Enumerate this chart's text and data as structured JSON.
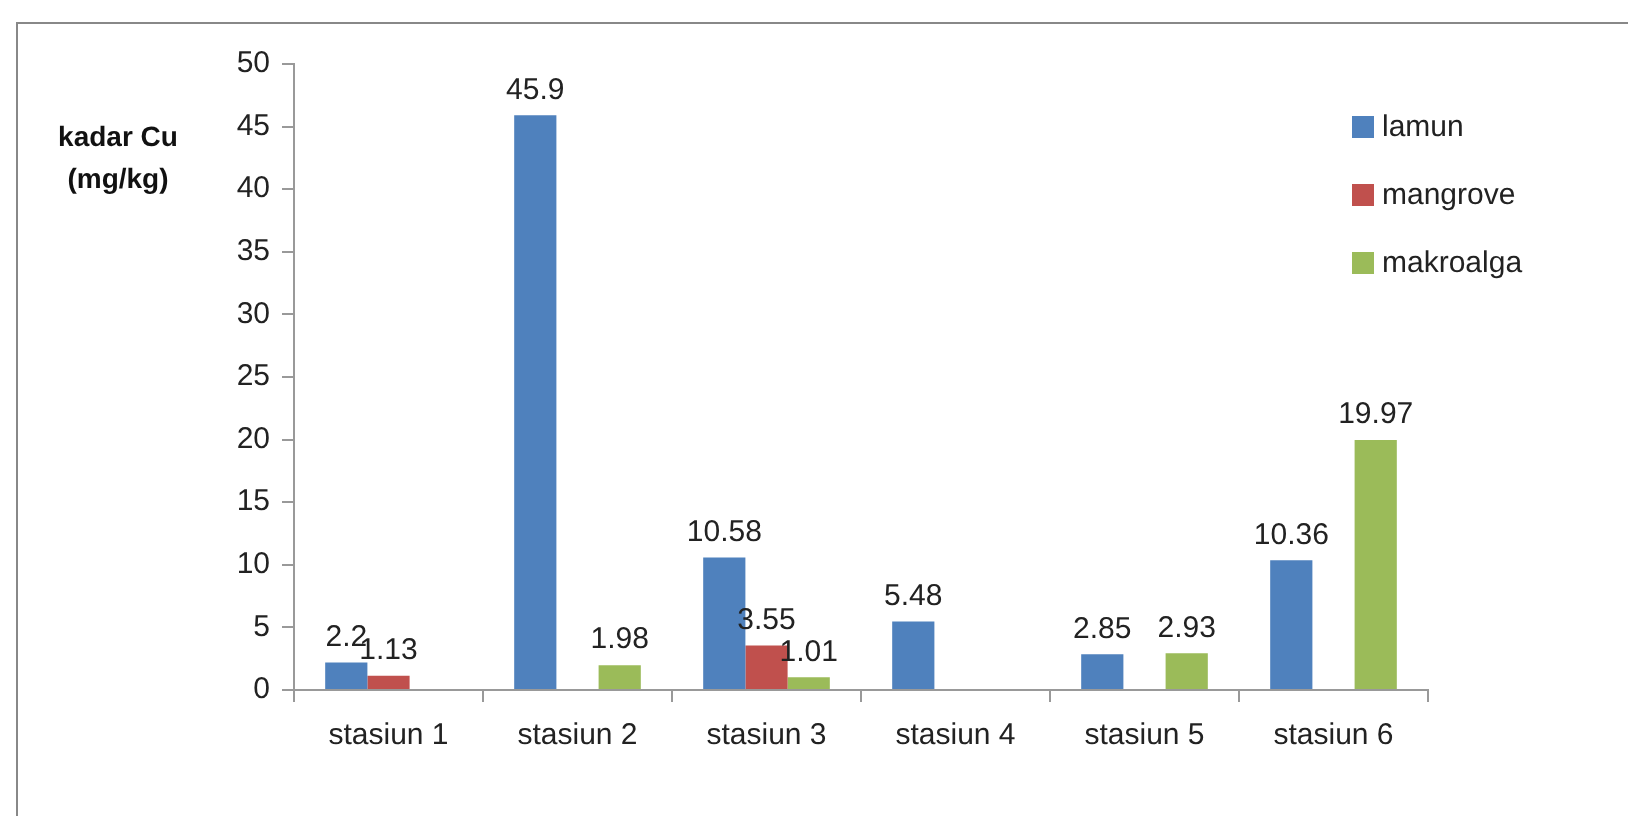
{
  "chart_data": {
    "type": "bar",
    "ylabel": "kadar Cu (mg/kg)",
    "categories": [
      "stasiun 1",
      "stasiun 2",
      "stasiun 3",
      "stasiun 4",
      "stasiun 5",
      "stasiun 6"
    ],
    "series": [
      {
        "name": "lamun",
        "color": "#4f81bd",
        "values": [
          2.2,
          45.9,
          10.58,
          5.48,
          2.85,
          10.36
        ]
      },
      {
        "name": "mangrove",
        "color": "#c0504d",
        "values": [
          1.13,
          null,
          3.55,
          null,
          null,
          null
        ]
      },
      {
        "name": "makroalga",
        "color": "#9bbb59",
        "values": [
          null,
          1.98,
          1.01,
          null,
          2.93,
          19.97
        ]
      }
    ],
    "ylim": [
      0,
      50
    ],
    "yticks": [
      0,
      5,
      10,
      15,
      20,
      25,
      30,
      35,
      40,
      45,
      50
    ],
    "grid": false,
    "legend": "top right",
    "data_labels": true
  }
}
